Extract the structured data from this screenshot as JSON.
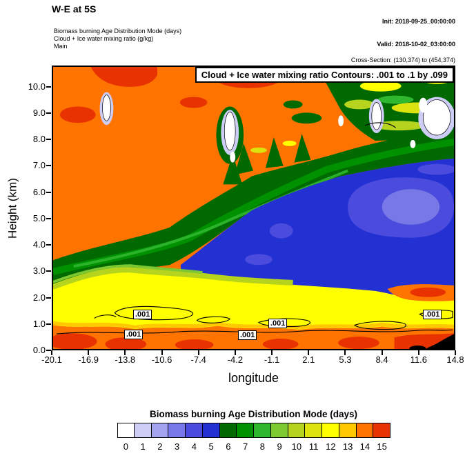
{
  "header": {
    "title": "W-E at 5S",
    "init_line": "Init: 2018-09-25_00:00:00",
    "valid_line": "Valid: 2018-10-02_03:00:00",
    "subtitle_line1": "Biomass burning Age Distribution Mode   (days)",
    "subtitle_line2": "Cloud + Ice water mixing ratio   (g/kg)",
    "subtitle_line3": "Main",
    "cross_section_note": "Cross-Section: (130,374) to (454,374)"
  },
  "plot": {
    "inner_title": "Cloud + Ice water mixing ratio Contours: .001 to .1 by .099",
    "xlabel": "longitude",
    "ylabel": "Height (km)",
    "x_ticks": [
      "-20.1",
      "-16.9",
      "-13.8",
      "-10.6",
      "-7.4",
      "-4.2",
      "-1.1",
      "2.1",
      "5.3",
      "8.4",
      "11.6",
      "14.8"
    ],
    "y_ticks": [
      "0.0",
      "1.0",
      "2.0",
      "3.0",
      "4.0",
      "5.0",
      "6.0",
      "7.0",
      "8.0",
      "9.0",
      "10.0"
    ],
    "contour_labels": [
      ".001",
      ".001",
      ".001",
      ".001",
      ".001"
    ]
  },
  "colorbar": {
    "title": "Biomass burning Age Distribution Mode  (days)",
    "tick_labels": [
      "0",
      "1",
      "2",
      "3",
      "4",
      "5",
      "6",
      "7",
      "8",
      "9",
      "10",
      "11",
      "12",
      "13",
      "14",
      "15"
    ],
    "colors": [
      "#ffffff",
      "#cdcdf6",
      "#a3a3ee",
      "#7878e6",
      "#4b4bde",
      "#2330d2",
      "#006a00",
      "#009100",
      "#30b730",
      "#7ec832",
      "#b6d41e",
      "#dce30e",
      "#ffff00",
      "#ffc800",
      "#ff7300",
      "#e83200"
    ]
  },
  "chart_data": {
    "type": "heatmap",
    "subtype": "filled_contour_cross_section",
    "title": "W-E at 5S",
    "xlabel": "longitude",
    "ylabel": "Height (km)",
    "x_ticks": [
      -20.1,
      -16.9,
      -13.8,
      -10.6,
      -7.4,
      -4.2,
      -1.1,
      2.1,
      5.3,
      8.4,
      11.6,
      14.8
    ],
    "y_ticks": [
      0,
      1,
      2,
      3,
      4,
      5,
      6,
      7,
      8,
      9,
      10
    ],
    "xlim": [
      -20.1,
      14.8
    ],
    "ylim": [
      0,
      10.8
    ],
    "fill_variable": "Biomass burning Age Distribution Mode (days)",
    "fill_levels": [
      0,
      1,
      2,
      3,
      4,
      5,
      6,
      7,
      8,
      9,
      10,
      11,
      12,
      13,
      14,
      15
    ],
    "fill_colors": [
      "#ffffff",
      "#cdcdf6",
      "#a3a3ee",
      "#7878e6",
      "#4b4bde",
      "#2330d2",
      "#006a00",
      "#009100",
      "#30b730",
      "#7ec832",
      "#b6d41e",
      "#dce30e",
      "#ffff00",
      "#ffc800",
      "#ff7300",
      "#e83200"
    ],
    "contour_variable": "Cloud + Ice water mixing ratio (g/kg)",
    "contour_levels": [
      0.001,
      0.1
    ],
    "contour_interval_note": ".001 to .1 by .099",
    "cross_section": "(130,374) to (454,374)",
    "legend_position": "bottom",
    "estimated_field": {
      "lon": [
        -20.1,
        -16.9,
        -13.8,
        -10.6,
        -7.4,
        -4.2,
        -1.1,
        2.1,
        5.3,
        8.4,
        11.6,
        14.8
      ],
      "height_km": [
        0.5,
        1.5,
        2.5,
        3.5,
        4.5,
        5.5,
        6.5,
        7.5,
        8.5,
        9.5,
        10.5
      ],
      "age_mode_days_by_lon_column": [
        [
          14,
          12,
          8,
          14,
          14,
          14,
          14,
          14,
          14,
          14,
          14
        ],
        [
          14,
          12,
          8,
          7,
          14,
          14,
          14,
          14,
          14,
          15,
          14
        ],
        [
          14,
          12,
          12,
          7,
          7,
          14,
          14,
          14,
          14,
          14,
          14
        ],
        [
          14,
          12,
          12,
          12,
          7,
          7,
          14,
          14,
          14,
          14,
          14
        ],
        [
          14,
          12,
          8,
          7,
          5,
          7,
          7,
          14,
          14,
          14,
          14
        ],
        [
          14,
          12,
          7,
          5,
          5,
          5,
          7,
          7,
          0,
          14,
          14
        ],
        [
          14,
          12,
          7,
          5,
          5,
          5,
          5,
          7,
          8,
          12,
          14
        ],
        [
          14,
          12,
          5,
          5,
          4,
          4,
          5,
          7,
          8,
          9,
          14
        ],
        [
          14,
          12,
          5,
          5,
          4,
          3,
          5,
          7,
          8,
          8,
          8
        ],
        [
          14,
          12,
          5,
          4,
          3,
          3,
          4,
          5,
          0,
          8,
          8
        ],
        [
          14,
          14,
          5,
          4,
          3,
          3,
          4,
          5,
          7,
          8,
          8
        ],
        [
          15,
          12,
          14,
          5,
          4,
          4,
          4,
          5,
          7,
          0,
          8
        ]
      ]
    }
  }
}
